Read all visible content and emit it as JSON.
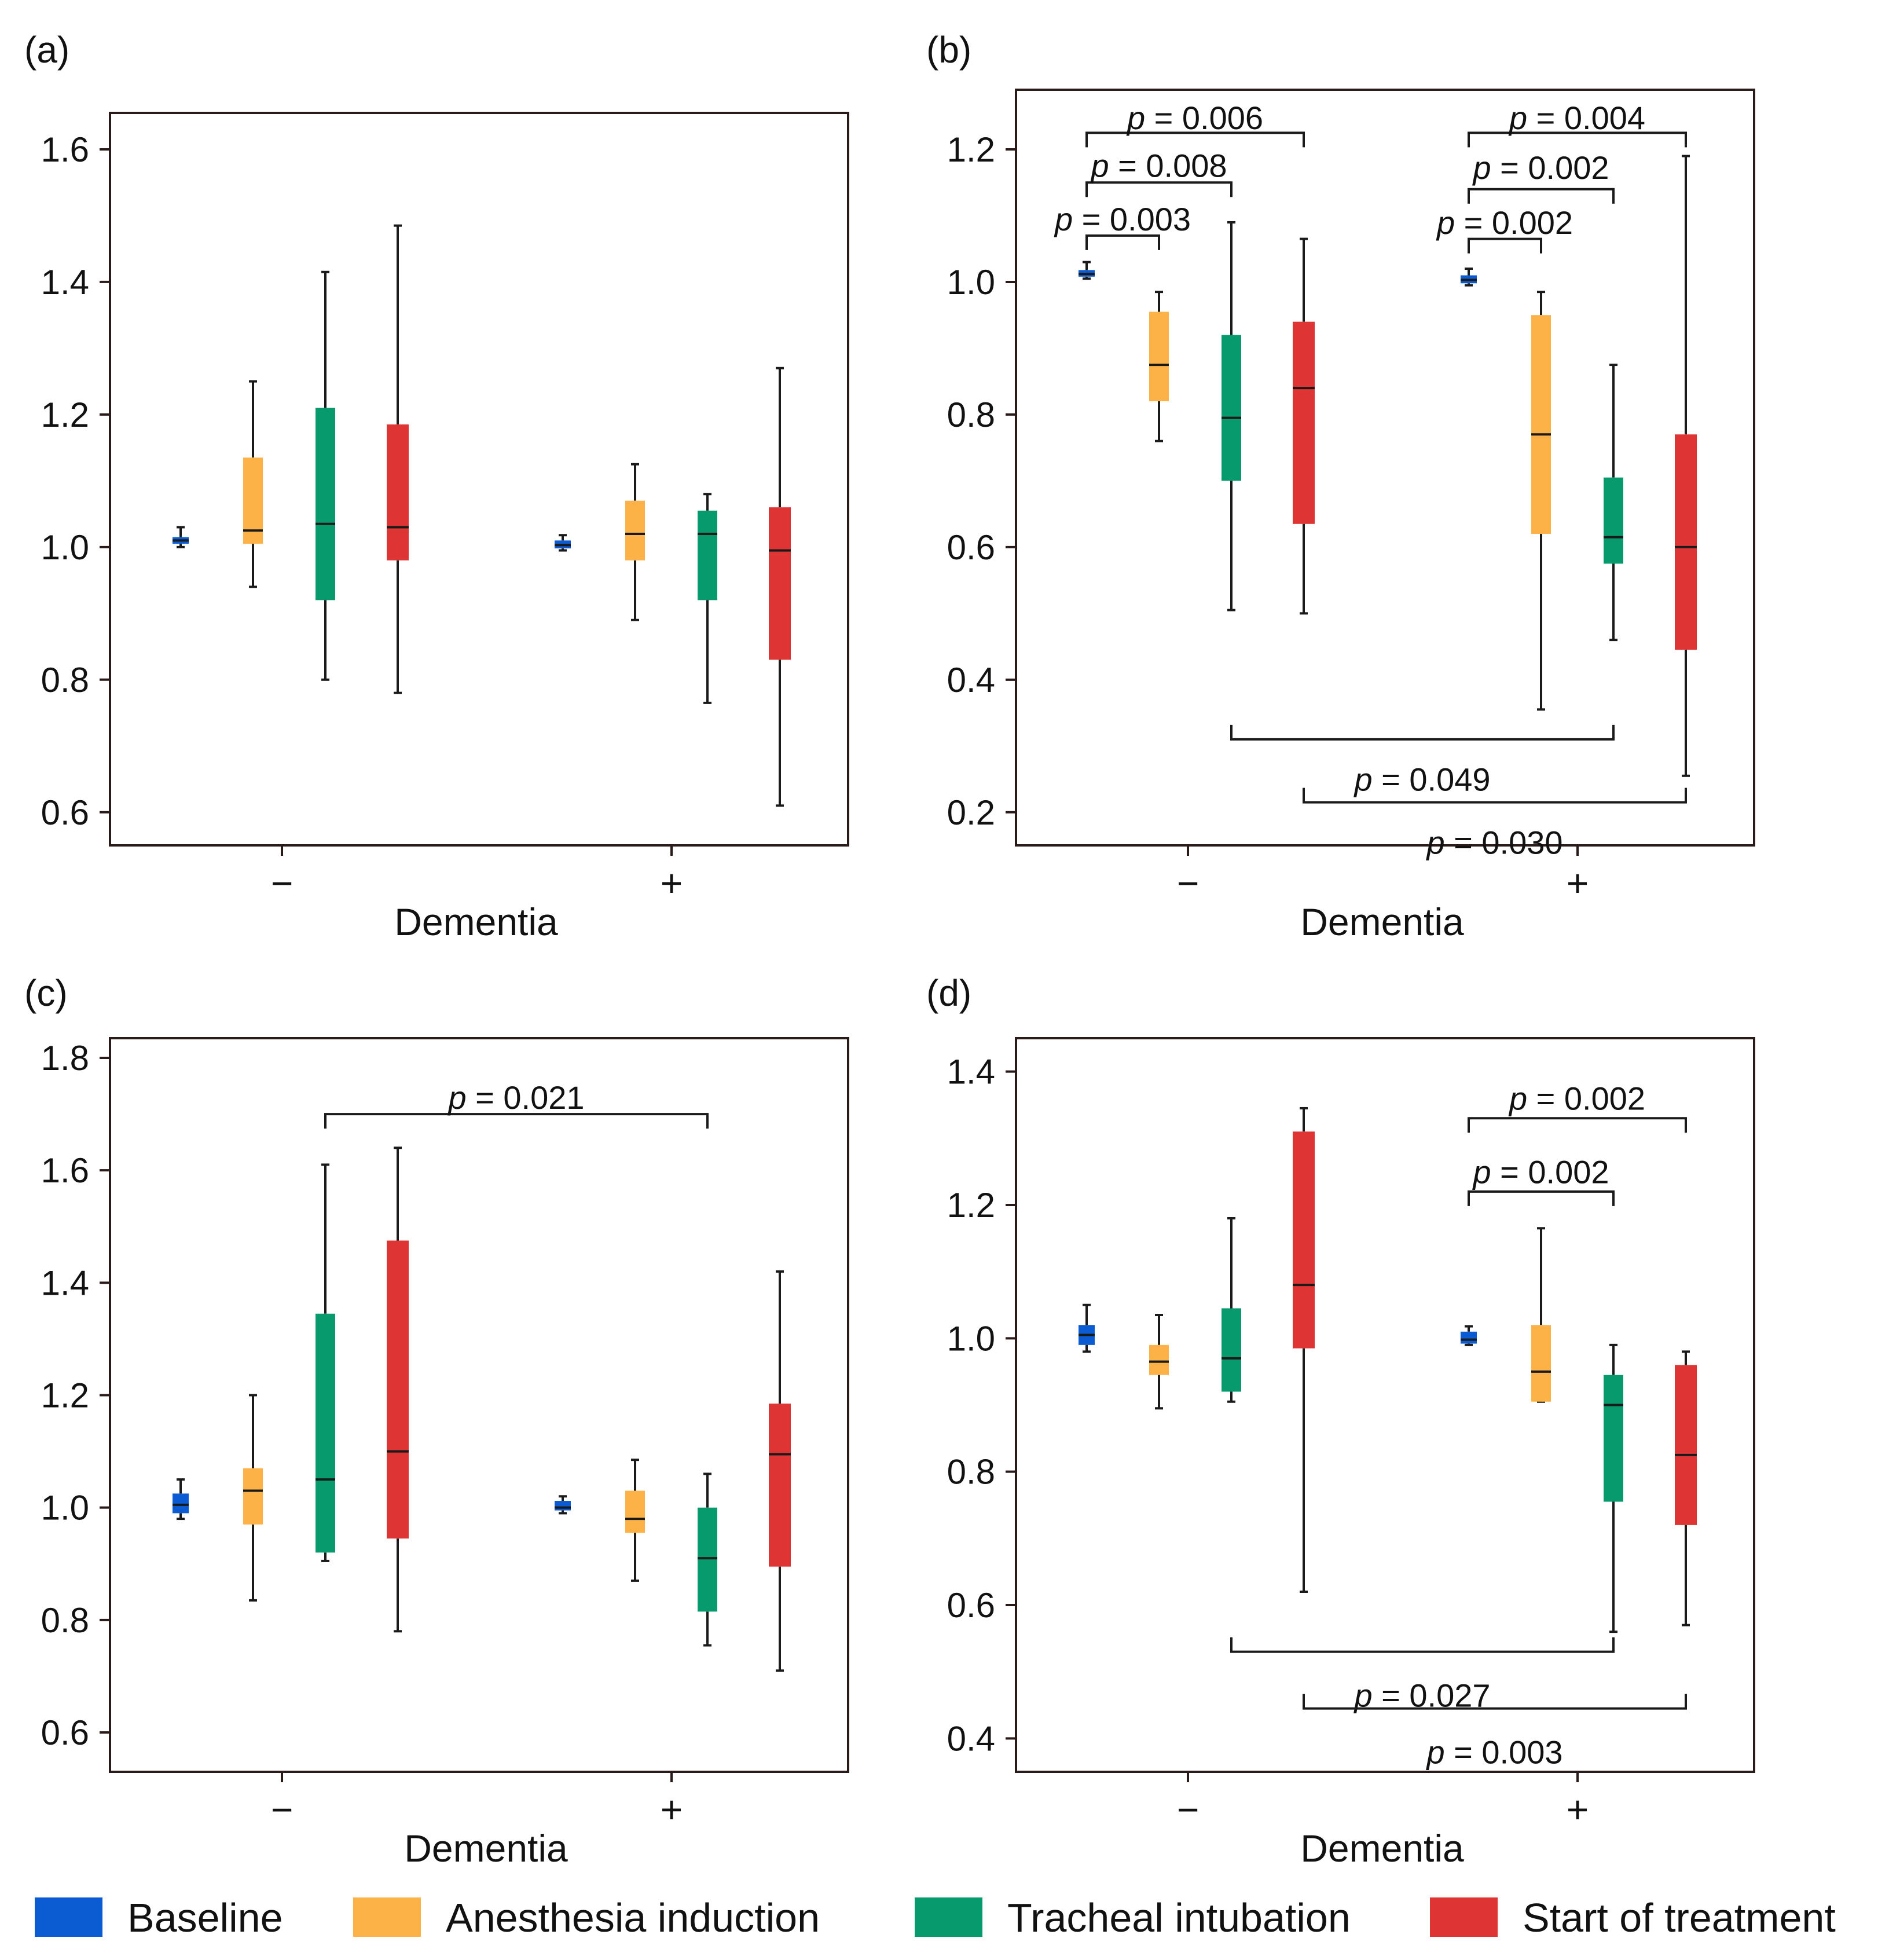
{
  "colors": {
    "baseline": "#0b5bd3",
    "anesthesia": "#fcb247",
    "intubation": "#069a6d",
    "treatment": "#de3434",
    "frame": "#2a1a1a",
    "median": "#1a1a1a"
  },
  "legend": [
    {
      "key": "baseline",
      "label": "Baseline"
    },
    {
      "key": "anesthesia",
      "label": "Anesthesia induction"
    },
    {
      "key": "intubation",
      "label": "Tracheal intubation"
    },
    {
      "key": "treatment",
      "label": "Start of treatment"
    }
  ],
  "chart_data": [
    {
      "type": "box",
      "panel": "(a)",
      "xlabel": "Dementia",
      "ylim": [
        0.55,
        1.655
      ],
      "yticks": [
        0.6,
        0.8,
        1.0,
        1.2,
        1.4,
        1.6
      ],
      "ytick_labels": [
        "0.6",
        "0.8",
        "1.0",
        "1.2",
        "1.4",
        "1.6"
      ],
      "groups": [
        {
          "label": "−",
          "boxes": [
            {
              "series": "baseline",
              "whislo": 1.0,
              "q1": 1.005,
              "med": 1.01,
              "q3": 1.015,
              "whishi": 1.03
            },
            {
              "series": "anesthesia",
              "whislo": 0.94,
              "q1": 1.005,
              "med": 1.025,
              "q3": 1.135,
              "whishi": 1.25
            },
            {
              "series": "intubation",
              "whislo": 0.8,
              "q1": 0.92,
              "med": 1.035,
              "q3": 1.21,
              "whishi": 1.415
            },
            {
              "series": "treatment",
              "whislo": 0.78,
              "q1": 0.98,
              "med": 1.03,
              "q3": 1.185,
              "whishi": 1.485
            }
          ]
        },
        {
          "label": "+",
          "boxes": [
            {
              "series": "baseline",
              "whislo": 0.995,
              "q1": 0.998,
              "med": 1.003,
              "q3": 1.01,
              "whishi": 1.018
            },
            {
              "series": "anesthesia",
              "whislo": 0.89,
              "q1": 0.98,
              "med": 1.02,
              "q3": 1.07,
              "whishi": 1.125
            },
            {
              "series": "intubation",
              "whislo": 0.765,
              "q1": 0.92,
              "med": 1.02,
              "q3": 1.055,
              "whishi": 1.08
            },
            {
              "series": "treatment",
              "whislo": 0.61,
              "q1": 0.83,
              "med": 0.995,
              "q3": 1.06,
              "whishi": 1.27
            }
          ]
        }
      ],
      "annotations": []
    },
    {
      "type": "box",
      "panel": "(b)",
      "xlabel": "Dementia",
      "ylim": [
        0.15,
        1.29
      ],
      "yticks": [
        0.2,
        0.4,
        0.6,
        0.8,
        1.0,
        1.2
      ],
      "ytick_labels": [
        "0.2",
        "0.4",
        "0.6",
        "0.8",
        "1.0",
        "1.2"
      ],
      "groups": [
        {
          "label": "−",
          "boxes": [
            {
              "series": "baseline",
              "whislo": 1.005,
              "q1": 1.008,
              "med": 1.012,
              "q3": 1.018,
              "whishi": 1.03
            },
            {
              "series": "anesthesia",
              "whislo": 0.76,
              "q1": 0.82,
              "med": 0.875,
              "q3": 0.955,
              "whishi": 0.985
            },
            {
              "series": "intubation",
              "whislo": 0.505,
              "q1": 0.7,
              "med": 0.795,
              "q3": 0.92,
              "whishi": 1.09
            },
            {
              "series": "treatment",
              "whislo": 0.5,
              "q1": 0.635,
              "med": 0.84,
              "q3": 0.94,
              "whishi": 1.065
            }
          ]
        },
        {
          "label": "+",
          "boxes": [
            {
              "series": "baseline",
              "whislo": 0.995,
              "q1": 0.998,
              "med": 1.003,
              "q3": 1.01,
              "whishi": 1.02
            },
            {
              "series": "anesthesia",
              "whislo": 0.355,
              "q1": 0.62,
              "med": 0.77,
              "q3": 0.95,
              "whishi": 0.985
            },
            {
              "series": "intubation",
              "whislo": 0.46,
              "q1": 0.575,
              "med": 0.615,
              "q3": 0.705,
              "whishi": 0.875
            },
            {
              "series": "treatment",
              "whislo": 0.255,
              "q1": 0.445,
              "med": 0.6,
              "q3": 0.77,
              "whishi": 1.19
            }
          ]
        }
      ],
      "annotations": [
        {
          "from": [
            0,
            0
          ],
          "to": [
            0,
            1
          ],
          "y": 1.07,
          "dir": "down",
          "text_y": 1.095,
          "prefix": "p",
          "value": " = 0.003"
        },
        {
          "from": [
            0,
            0
          ],
          "to": [
            0,
            2
          ],
          "y": 1.15,
          "dir": "down",
          "text_y": 1.176,
          "prefix": "p",
          "value": " = 0.008"
        },
        {
          "from": [
            0,
            0
          ],
          "to": [
            0,
            3
          ],
          "y": 1.225,
          "dir": "down",
          "text_y": 1.248,
          "prefix": "p",
          "value": " = 0.006"
        },
        {
          "from": [
            1,
            0
          ],
          "to": [
            1,
            1
          ],
          "y": 1.065,
          "dir": "down",
          "text_y": 1.09,
          "prefix": "p",
          "value": " = 0.002"
        },
        {
          "from": [
            1,
            0
          ],
          "to": [
            1,
            2
          ],
          "y": 1.14,
          "dir": "down",
          "text_y": 1.173,
          "prefix": "p",
          "value": " = 0.002"
        },
        {
          "from": [
            1,
            0
          ],
          "to": [
            1,
            3
          ],
          "y": 1.225,
          "dir": "down",
          "text_y": 1.248,
          "prefix": "p",
          "value": " = 0.004"
        },
        {
          "from": [
            0,
            2
          ],
          "to": [
            1,
            2
          ],
          "y": 0.31,
          "dir": "up",
          "text_y": 0.25,
          "prefix": "p",
          "value": " = 0.049"
        },
        {
          "from": [
            0,
            3
          ],
          "to": [
            1,
            3
          ],
          "y": 0.215,
          "dir": "up",
          "text_y": 0.155,
          "prefix": "p",
          "value": " = 0.030"
        }
      ]
    },
    {
      "type": "box",
      "panel": "(c)",
      "xlabel": "Dementia",
      "ylim": [
        0.53,
        1.835
      ],
      "yticks": [
        0.6,
        0.8,
        1.0,
        1.2,
        1.4,
        1.6,
        1.8
      ],
      "ytick_labels": [
        "0.6",
        "0.8",
        "1.0",
        "1.2",
        "1.4",
        "1.6",
        "1.8"
      ],
      "groups": [
        {
          "label": "−",
          "boxes": [
            {
              "series": "baseline",
              "whislo": 0.98,
              "q1": 0.99,
              "med": 1.005,
              "q3": 1.025,
              "whishi": 1.05
            },
            {
              "series": "anesthesia",
              "whislo": 0.835,
              "q1": 0.97,
              "med": 1.03,
              "q3": 1.07,
              "whishi": 1.2
            },
            {
              "series": "intubation",
              "whislo": 0.905,
              "q1": 0.92,
              "med": 1.05,
              "q3": 1.345,
              "whishi": 1.61
            },
            {
              "series": "treatment",
              "whislo": 0.78,
              "q1": 0.945,
              "med": 1.1,
              "q3": 1.475,
              "whishi": 1.64
            }
          ]
        },
        {
          "label": "+",
          "boxes": [
            {
              "series": "baseline",
              "whislo": 0.99,
              "q1": 0.995,
              "med": 1.0,
              "q3": 1.012,
              "whishi": 1.02
            },
            {
              "series": "anesthesia",
              "whislo": 0.87,
              "q1": 0.955,
              "med": 0.98,
              "q3": 1.03,
              "whishi": 1.085
            },
            {
              "series": "intubation",
              "whislo": 0.755,
              "q1": 0.815,
              "med": 0.91,
              "q3": 1.0,
              "whishi": 1.06
            },
            {
              "series": "treatment",
              "whislo": 0.71,
              "q1": 0.895,
              "med": 1.095,
              "q3": 1.185,
              "whishi": 1.42
            }
          ]
        }
      ],
      "annotations": [
        {
          "from": [
            0,
            2
          ],
          "to": [
            1,
            2
          ],
          "y": 1.7,
          "dir": "down",
          "text_y": 1.73,
          "prefix": "p",
          "value": " = 0.021"
        }
      ]
    },
    {
      "type": "box",
      "panel": "(d)",
      "xlabel": "Dementia",
      "ylim": [
        0.35,
        1.45
      ],
      "yticks": [
        0.4,
        0.6,
        0.8,
        1.0,
        1.2,
        1.4
      ],
      "ytick_labels": [
        "0.4",
        "0.6",
        "0.8",
        "1.0",
        "1.2",
        "1.4"
      ],
      "groups": [
        {
          "label": "−",
          "boxes": [
            {
              "series": "baseline",
              "whislo": 0.98,
              "q1": 0.99,
              "med": 1.005,
              "q3": 1.02,
              "whishi": 1.05
            },
            {
              "series": "anesthesia",
              "whislo": 0.895,
              "q1": 0.945,
              "med": 0.965,
              "q3": 0.99,
              "whishi": 1.035
            },
            {
              "series": "intubation",
              "whislo": 0.905,
              "q1": 0.92,
              "med": 0.97,
              "q3": 1.045,
              "whishi": 1.18
            },
            {
              "series": "treatment",
              "whislo": 0.62,
              "q1": 0.985,
              "med": 1.08,
              "q3": 1.31,
              "whishi": 1.345
            }
          ]
        },
        {
          "label": "+",
          "boxes": [
            {
              "series": "baseline",
              "whislo": 0.99,
              "q1": 0.992,
              "med": 0.998,
              "q3": 1.01,
              "whishi": 1.018
            },
            {
              "series": "anesthesia",
              "whislo": 0.905,
              "q1": 0.905,
              "med": 0.95,
              "q3": 1.02,
              "whishi": 1.165
            },
            {
              "series": "intubation",
              "whislo": 0.56,
              "q1": 0.755,
              "med": 0.9,
              "q3": 0.945,
              "whishi": 0.99
            },
            {
              "series": "treatment",
              "whislo": 0.57,
              "q1": 0.72,
              "med": 0.825,
              "q3": 0.96,
              "whishi": 0.98
            }
          ]
        }
      ],
      "annotations": [
        {
          "from": [
            1,
            0
          ],
          "to": [
            1,
            2
          ],
          "y": 1.22,
          "dir": "down",
          "text_y": 1.25,
          "prefix": "p",
          "value": " = 0.002"
        },
        {
          "from": [
            1,
            0
          ],
          "to": [
            1,
            3
          ],
          "y": 1.33,
          "dir": "down",
          "text_y": 1.36,
          "prefix": "p",
          "value": " = 0.002"
        },
        {
          "from": [
            0,
            2
          ],
          "to": [
            1,
            2
          ],
          "y": 0.53,
          "dir": "up",
          "text_y": 0.465,
          "prefix": "p",
          "value": " = 0.027"
        },
        {
          "from": [
            0,
            3
          ],
          "to": [
            1,
            3
          ],
          "y": 0.445,
          "dir": "up",
          "text_y": 0.38,
          "prefix": "p",
          "value": " = 0.003"
        }
      ]
    }
  ]
}
